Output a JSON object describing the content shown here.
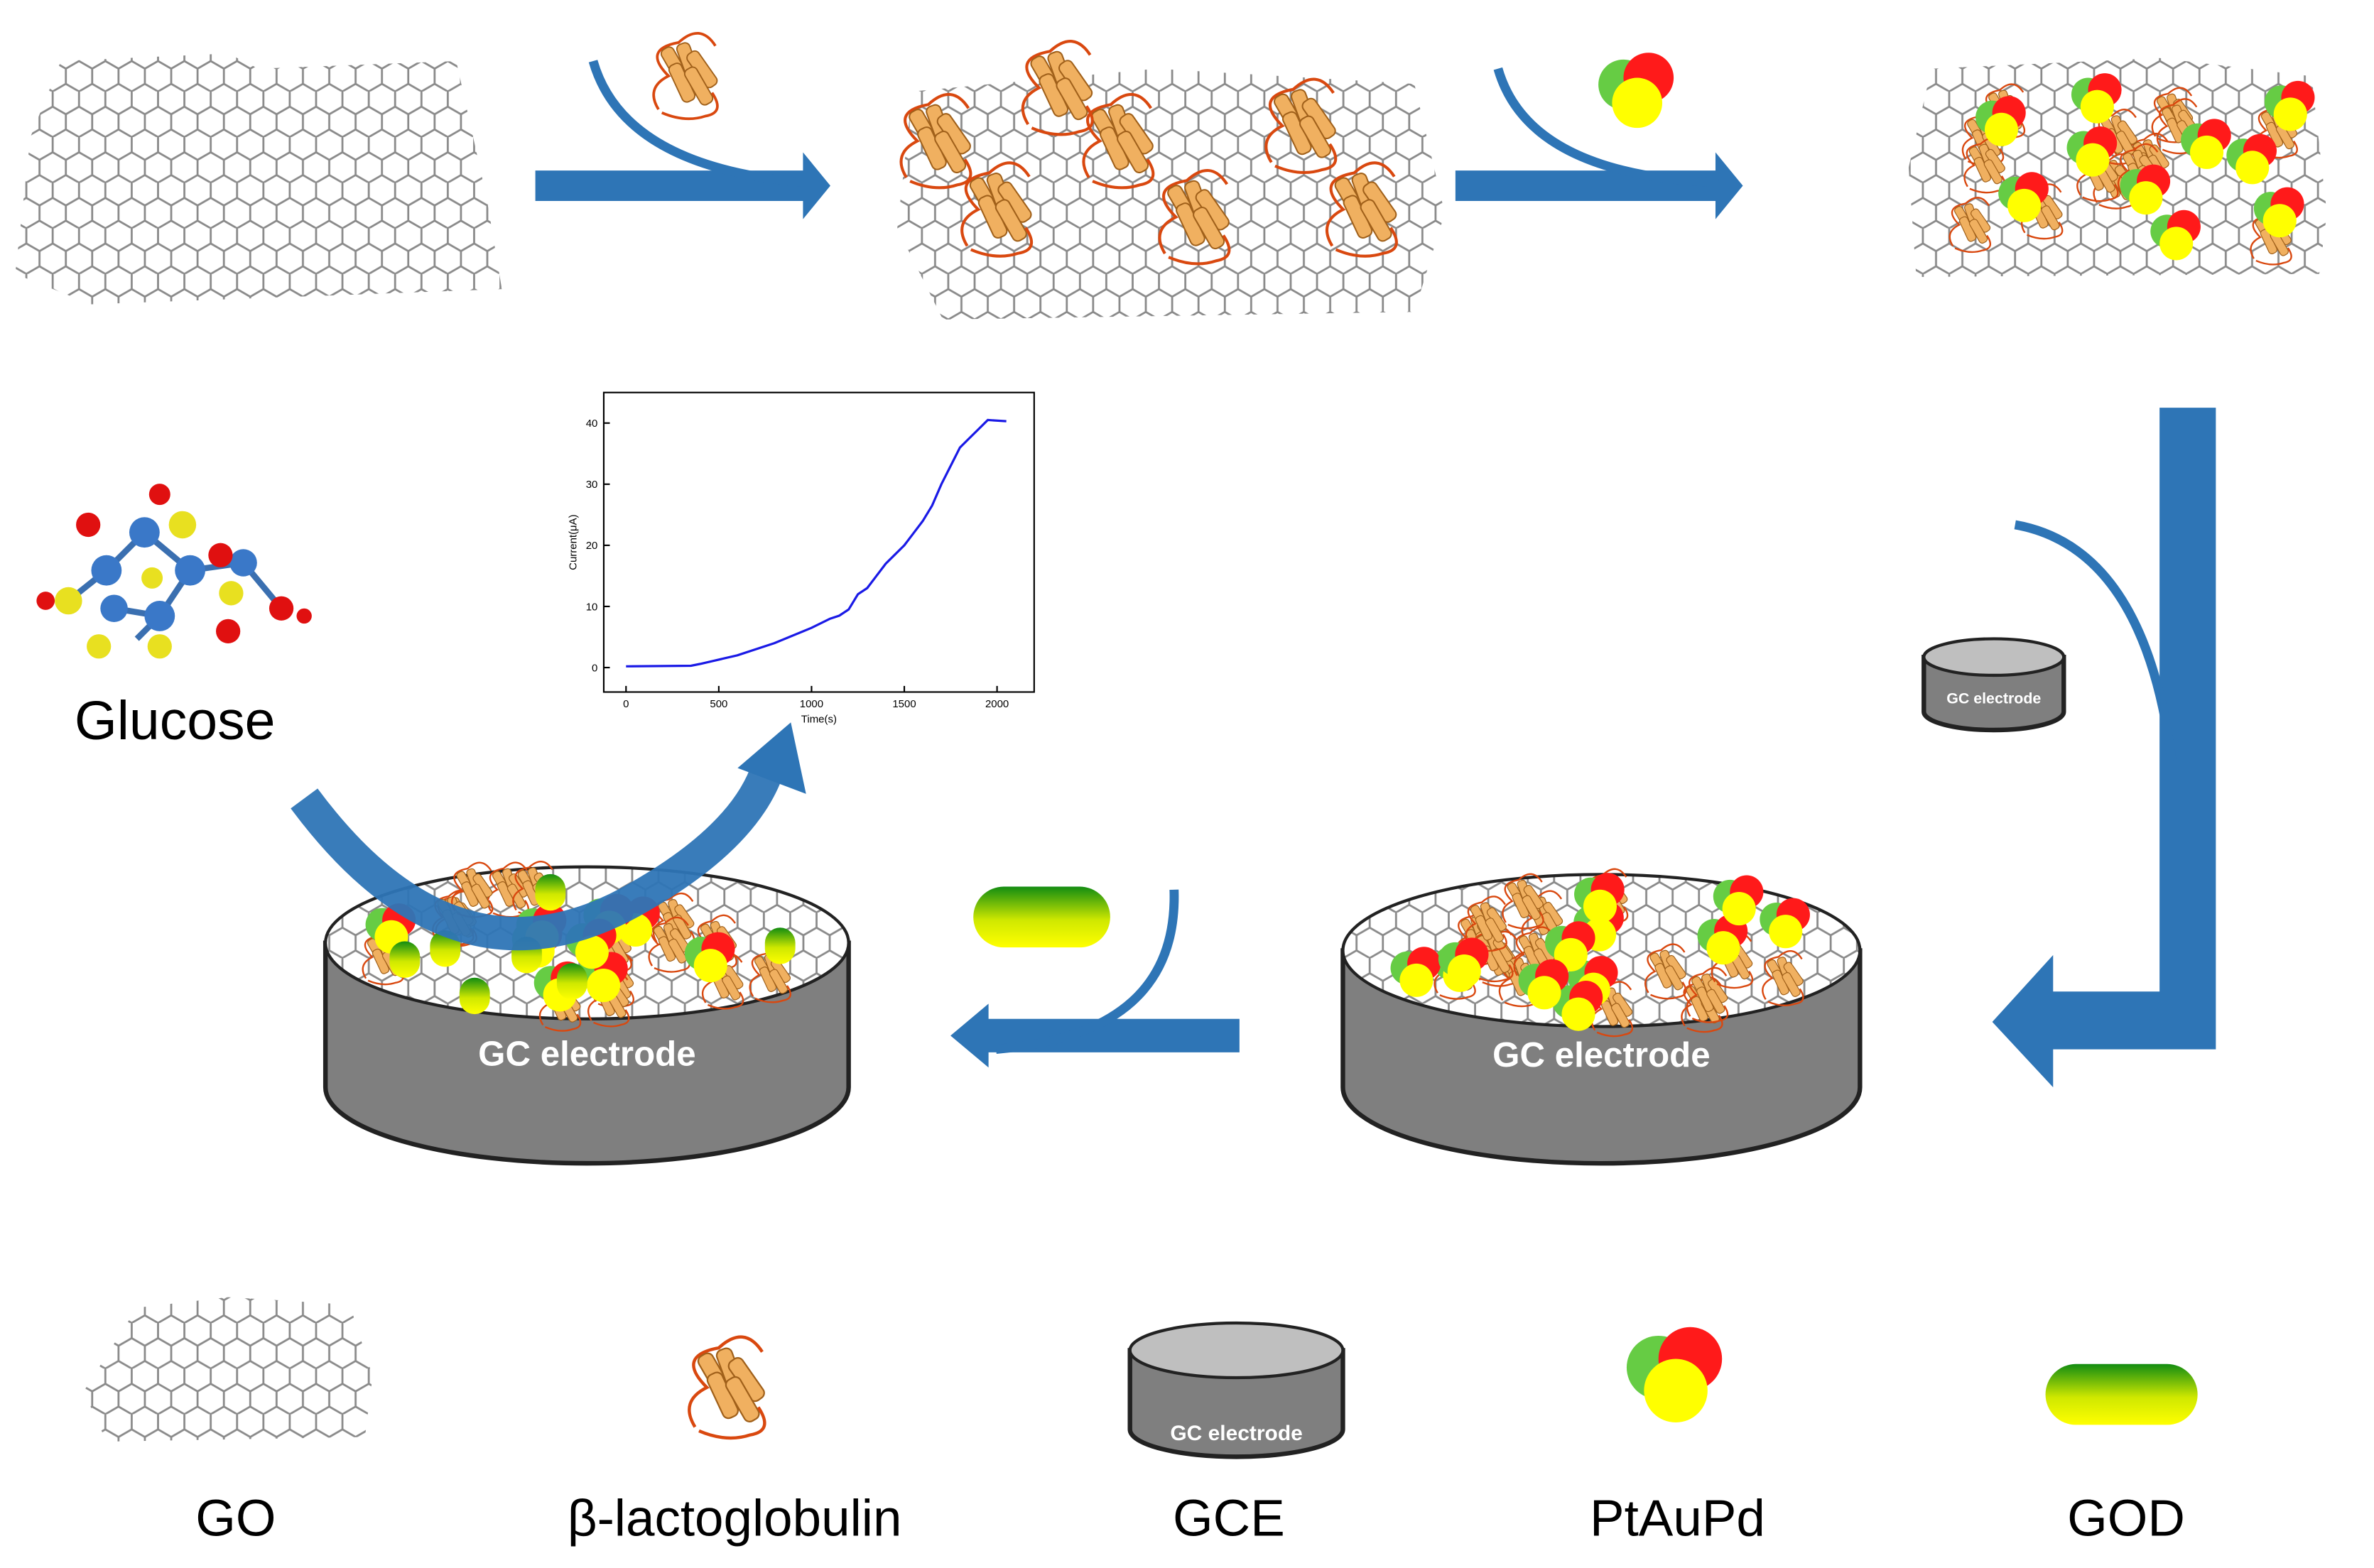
{
  "glucose_label": "Glucose",
  "electrode_labels": [
    "GC electrode",
    "GC electrode",
    "GC electrode"
  ],
  "legend": [
    {
      "label": "GO"
    },
    {
      "label": "β-lactoglobulin"
    },
    {
      "label": "GCE",
      "icon_text": "GC electrode"
    },
    {
      "label": "PtAuPd"
    },
    {
      "label": "GOD"
    }
  ],
  "inset_chart": {
    "type": "line",
    "x_label": "Time(s)",
    "y_label": "Current(μA)",
    "xlim": [
      -120,
      2200
    ],
    "ylim": [
      -4,
      45
    ],
    "xticks": [
      0,
      500,
      1000,
      1500,
      2000
    ],
    "yticks": [
      0,
      10,
      20,
      30,
      40
    ],
    "x": [
      0,
      350,
      400,
      600,
      800,
      1000,
      1100,
      1150,
      1200,
      1250,
      1300,
      1350,
      1400,
      1450,
      1500,
      1550,
      1600,
      1650,
      1700,
      1750,
      1800,
      1850,
      1900,
      1950,
      2050
    ],
    "values": [
      0.2,
      0.3,
      0.6,
      2,
      4,
      6.5,
      8,
      8.5,
      9.5,
      12,
      13,
      15,
      17,
      18.5,
      20,
      22,
      24,
      26.5,
      30,
      33,
      36,
      37.5,
      39,
      40.5,
      40.3
    ],
    "color": "#1a1ae6"
  }
}
